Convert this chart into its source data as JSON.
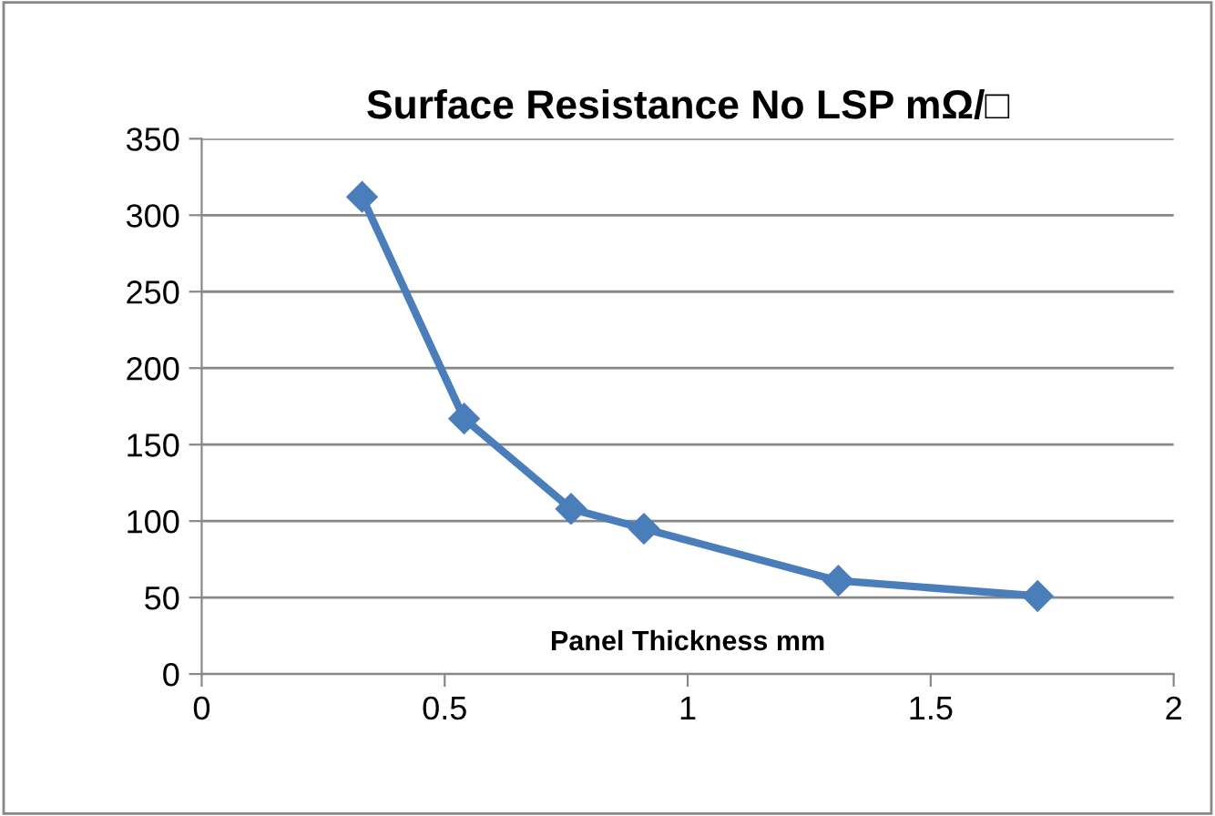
{
  "chart_data": {
    "type": "line",
    "title": "Surface Resistance No LSP mΩ/□",
    "xlabel": "Panel Thickness mm",
    "x": [
      0.33,
      0.54,
      0.76,
      0.91,
      1.31,
      1.72
    ],
    "series": [
      {
        "color": "#4a7ebb",
        "values": [
          312,
          167,
          108,
          95,
          61,
          51
        ]
      }
    ],
    "xlim": [
      0,
      2
    ],
    "xticks": [
      0,
      0.5,
      1,
      1.5,
      2
    ],
    "ylim": [
      0,
      350
    ],
    "yticks": [
      0,
      50,
      100,
      150,
      200,
      250,
      300,
      350
    ],
    "grid": "y",
    "marker": "diamond",
    "line_style": "solid",
    "legend": false
  }
}
